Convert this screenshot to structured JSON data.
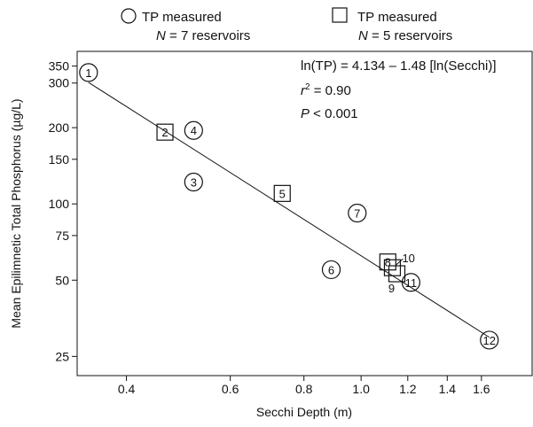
{
  "legend": [
    {
      "marker": "circle",
      "line1": "TP measured",
      "line2_n": "N",
      "line2_rest": " = 7 reservoirs"
    },
    {
      "marker": "square",
      "line1": "TP measured",
      "line2_n": "N",
      "line2_rest": " = 5 reservoirs"
    }
  ],
  "annotation": {
    "equation": "ln(TP) = 4.134 – 1.48 [ln(Secchi)]",
    "r2_symbol": "r",
    "r2_sup": "2",
    "r2_rest": " = 0.90",
    "p_symbol": "P",
    "p_rest": " < 0.001"
  },
  "chart_data": {
    "type": "scatter",
    "xlabel": "Secchi Depth (m)",
    "ylabel": "Mean Epilimnetic Total Phosphorus (µg/L)",
    "x_scale": "log",
    "y_scale": "log",
    "xlim": [
      0.33,
      1.95
    ],
    "ylim": [
      21,
      400
    ],
    "x_ticks": [
      0.4,
      0.6,
      0.8,
      1.0,
      1.2,
      1.4,
      1.6
    ],
    "x_tick_labels": [
      "0.4",
      "0.6",
      "0.8",
      "1.0",
      "1.2",
      "1.4",
      "1.6"
    ],
    "y_ticks": [
      25,
      50,
      75,
      100,
      150,
      200,
      300,
      350
    ],
    "y_tick_labels": [
      "25",
      "50",
      "75",
      "100",
      "150",
      "200",
      "300",
      "350"
    ],
    "grid": false,
    "legend_position": "top",
    "regression": {
      "intercept": 4.134,
      "slope": -1.48,
      "x_from": 0.345,
      "x_to": 1.65
    },
    "series": [
      {
        "marker": "circle",
        "points": [
          {
            "label": "1",
            "x": 0.345,
            "y": 330
          },
          {
            "label": "3",
            "x": 0.52,
            "y": 122
          },
          {
            "label": "4",
            "x": 0.52,
            "y": 195
          },
          {
            "label": "6",
            "x": 0.89,
            "y": 55
          },
          {
            "label": "7",
            "x": 0.985,
            "y": 92
          },
          {
            "label": "11",
            "x": 1.215,
            "y": 49
          },
          {
            "label": "12",
            "x": 1.65,
            "y": 29
          }
        ]
      },
      {
        "marker": "square",
        "points": [
          {
            "label": "2",
            "x": 0.465,
            "y": 192
          },
          {
            "label": "5",
            "x": 0.735,
            "y": 110
          },
          {
            "label": "8",
            "x": 1.11,
            "y": 59
          },
          {
            "label": "9",
            "x": 1.15,
            "y": 53
          },
          {
            "label": "10",
            "x": 1.13,
            "y": 56
          }
        ]
      }
    ]
  }
}
